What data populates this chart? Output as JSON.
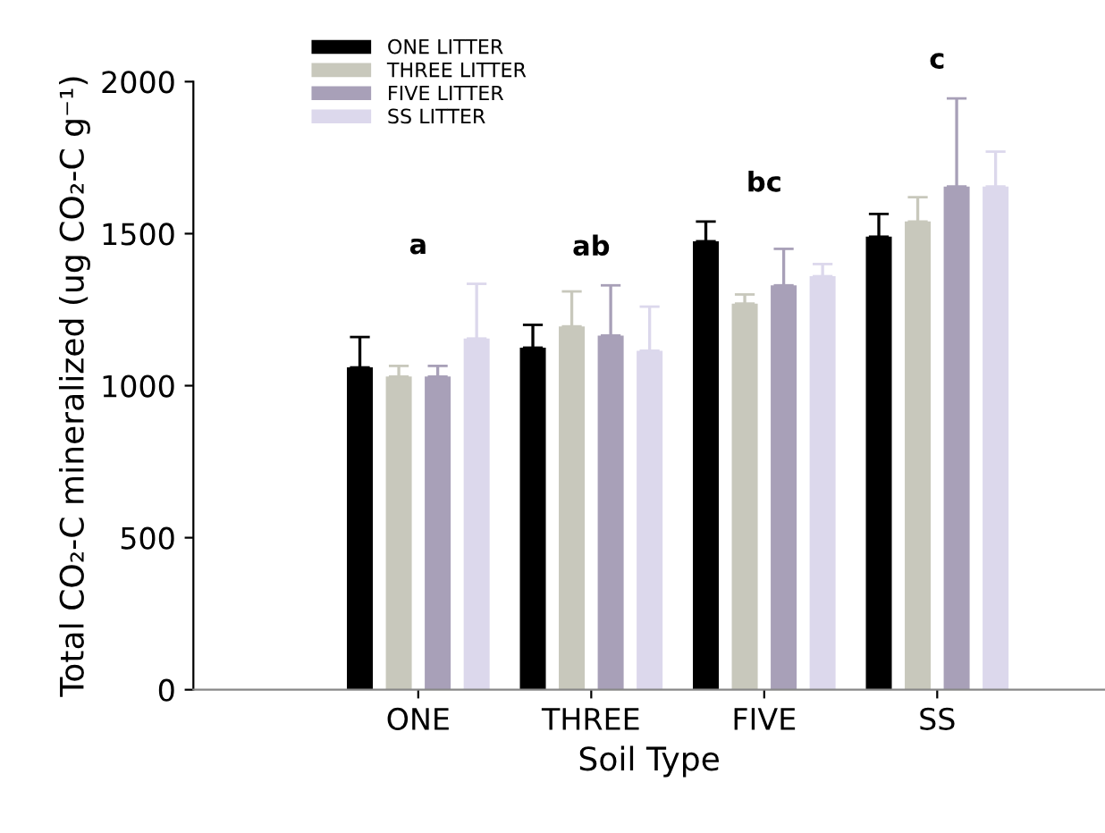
{
  "chart_data": {
    "type": "bar",
    "xlabel": "Soil Type",
    "ylabel": "Total CO₂-C mineralized (ug CO₂-C g⁻¹)",
    "categories": [
      "ONE",
      "THREE",
      "FIVE",
      "SS"
    ],
    "series": [
      {
        "name": "ONE LITTER",
        "color": "#000000",
        "values": [
          1060,
          1125,
          1475,
          1490
        ],
        "errors": [
          [
            1060,
            1160
          ],
          [
            1125,
            1200
          ],
          [
            1475,
            1540
          ],
          [
            1490,
            1565
          ]
        ]
      },
      {
        "name": "THREE LITTER",
        "color": "#c8c8bc",
        "values": [
          1030,
          1195,
          1270,
          1540
        ],
        "errors": [
          [
            1030,
            1065
          ],
          [
            1195,
            1310
          ],
          [
            1270,
            1300
          ],
          [
            1540,
            1620
          ]
        ]
      },
      {
        "name": "FIVE LITTER",
        "color": "#a8a0b8",
        "values": [
          1030,
          1165,
          1330,
          1655
        ],
        "errors": [
          [
            1030,
            1065
          ],
          [
            1165,
            1330
          ],
          [
            1330,
            1450
          ],
          [
            1655,
            1945
          ]
        ]
      },
      {
        "name": "SS LITTER",
        "color": "#dcd8ec",
        "values": [
          1155,
          1115,
          1360,
          1655
        ],
        "errors": [
          [
            1155,
            1335
          ],
          [
            1115,
            1260
          ],
          [
            1360,
            1400
          ],
          [
            1655,
            1770
          ]
        ]
      }
    ],
    "ylim": [
      0,
      2000
    ],
    "yticks": [
      0,
      500,
      1000,
      1500,
      2000
    ],
    "grid": false,
    "legend": "top left",
    "annotations": [
      "a",
      "ab",
      "bc",
      "c"
    ]
  }
}
